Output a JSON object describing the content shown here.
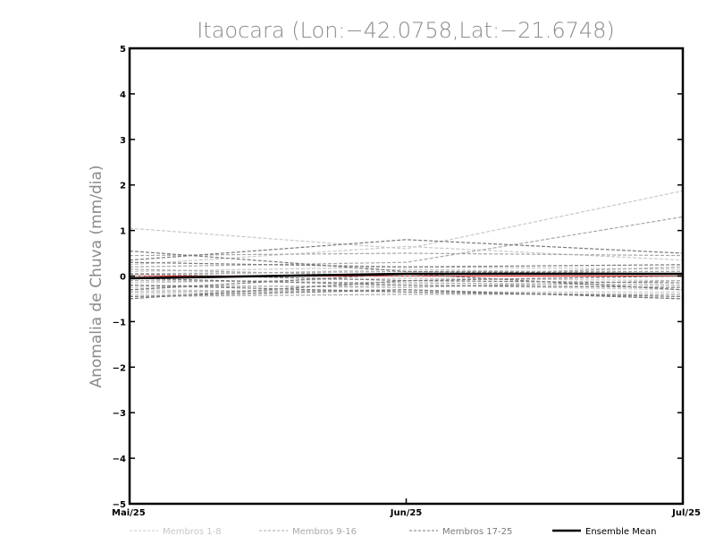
{
  "chart_data": {
    "type": "line",
    "title": "Itaocara (Lon:−42.0758,Lat:−21.6748)",
    "ylabel": "Anomalia de Chuva (mm/dia)",
    "xlabel": "",
    "categories": [
      "Mai/25",
      "Jun/25",
      "Jul/25"
    ],
    "yticks": [
      "5",
      "4",
      "3",
      "2",
      "1",
      "0",
      "−1",
      "−2",
      "−3",
      "−4",
      "−5"
    ],
    "ylim": [
      -5,
      5
    ],
    "grid": false,
    "legend_position": "bottom",
    "colors": {
      "group1": "#c8c8c8",
      "group2": "#a8a8a8",
      "group3": "#7a7a7a",
      "mean": "#000000",
      "zero_line": "#e03030"
    },
    "legend": [
      {
        "label": "Membros 1-8",
        "group": "group1",
        "dashed": true
      },
      {
        "label": "Membros 9-16",
        "group": "group2",
        "dashed": true
      },
      {
        "label": "Membros 17-25",
        "group": "group3",
        "dashed": true
      },
      {
        "label": "Ensemble Mean",
        "group": "mean",
        "dashed": false
      }
    ],
    "series": [
      {
        "group": "group1",
        "values": [
          1.05,
          0.6,
          1.87
        ]
      },
      {
        "group": "group1",
        "values": [
          0.25,
          0.65,
          0.35
        ]
      },
      {
        "group": "group1",
        "values": [
          0.1,
          0.2,
          0.15
        ]
      },
      {
        "group": "group1",
        "values": [
          -0.15,
          -0.05,
          -0.1
        ]
      },
      {
        "group": "group1",
        "values": [
          -0.25,
          -0.2,
          -0.3
        ]
      },
      {
        "group": "group1",
        "values": [
          -0.3,
          -0.35,
          -0.35
        ]
      },
      {
        "group": "group1",
        "values": [
          0.0,
          0.15,
          0.05
        ]
      },
      {
        "group": "group1",
        "values": [
          -0.4,
          -0.3,
          -0.45
        ]
      },
      {
        "group": "group2",
        "values": [
          0.45,
          0.5,
          0.45
        ]
      },
      {
        "group": "group2",
        "values": [
          0.2,
          0.3,
          1.3
        ]
      },
      {
        "group": "group2",
        "values": [
          0.05,
          0.1,
          0.1
        ]
      },
      {
        "group": "group2",
        "values": [
          -0.1,
          -0.15,
          -0.2
        ]
      },
      {
        "group": "group2",
        "values": [
          -0.2,
          -0.25,
          -0.1
        ]
      },
      {
        "group": "group2",
        "values": [
          -0.35,
          -0.3,
          -0.5
        ]
      },
      {
        "group": "group2",
        "values": [
          0.15,
          0.0,
          0.2
        ]
      },
      {
        "group": "group2",
        "values": [
          -0.45,
          -0.4,
          -0.4
        ]
      },
      {
        "group": "group3",
        "values": [
          0.55,
          0.1,
          0.05
        ]
      },
      {
        "group": "group3",
        "values": [
          0.35,
          0.8,
          0.5
        ]
      },
      {
        "group": "group3",
        "values": [
          0.3,
          0.2,
          0.25
        ]
      },
      {
        "group": "group3",
        "values": [
          0.05,
          -0.1,
          0.0
        ]
      },
      {
        "group": "group3",
        "values": [
          -0.05,
          -0.2,
          -0.25
        ]
      },
      {
        "group": "group3",
        "values": [
          -0.2,
          -0.35,
          -0.45
        ]
      },
      {
        "group": "group3",
        "values": [
          -0.3,
          0.05,
          -0.3
        ]
      },
      {
        "group": "group3",
        "values": [
          -0.45,
          -0.3,
          -0.5
        ]
      },
      {
        "group": "group3",
        "values": [
          -0.5,
          -0.1,
          -0.15
        ]
      }
    ],
    "mean": [
      -0.05,
      0.05,
      0.05
    ]
  }
}
